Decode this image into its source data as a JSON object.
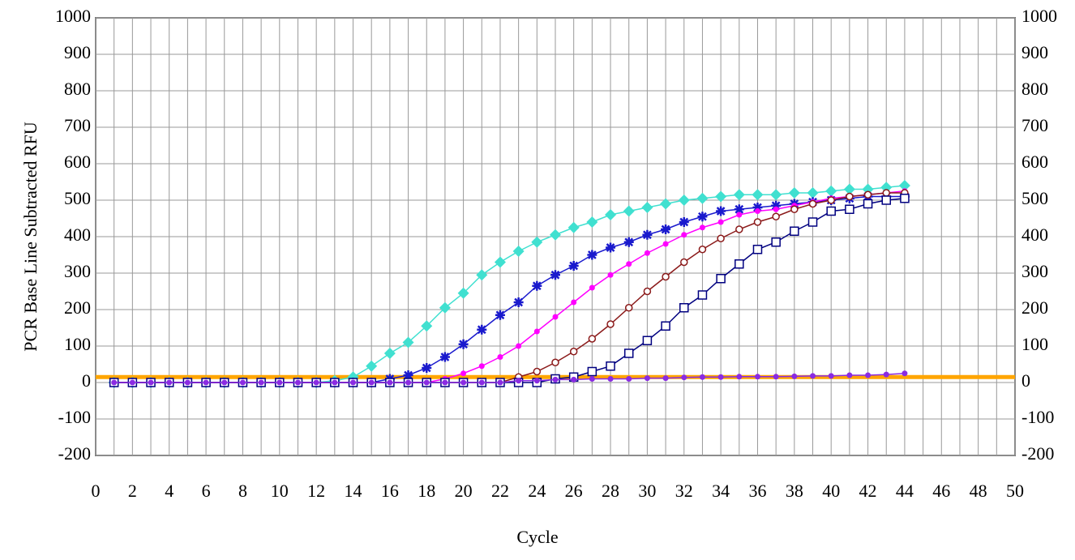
{
  "chart_data": {
    "type": "line",
    "x_label": "Cycle",
    "y_label": "PCR Base Line Subtracted RFU",
    "x": [
      1,
      2,
      3,
      4,
      5,
      6,
      7,
      8,
      9,
      10,
      11,
      12,
      13,
      14,
      15,
      16,
      17,
      18,
      19,
      20,
      21,
      22,
      23,
      24,
      25,
      26,
      27,
      28,
      29,
      30,
      31,
      32,
      33,
      34,
      35,
      36,
      37,
      38,
      39,
      40,
      41,
      42,
      43,
      44
    ],
    "series": [
      {
        "color": "#40e0d0",
        "marker": "diamond",
        "values": [
          0,
          0,
          0,
          0,
          0,
          0,
          0,
          0,
          0,
          0,
          0,
          0,
          5,
          15,
          45,
          80,
          110,
          155,
          205,
          245,
          295,
          330,
          360,
          385,
          405,
          425,
          440,
          460,
          470,
          480,
          490,
          500,
          505,
          510,
          515,
          515,
          515,
          520,
          520,
          525,
          530,
          530,
          535,
          540
        ]
      },
      {
        "color": "#1a1acd",
        "marker": "star",
        "values": [
          0,
          0,
          0,
          0,
          0,
          0,
          0,
          0,
          0,
          0,
          0,
          0,
          0,
          0,
          0,
          10,
          20,
          40,
          70,
          105,
          145,
          185,
          220,
          265,
          295,
          320,
          350,
          370,
          385,
          405,
          420,
          440,
          455,
          470,
          475,
          480,
          485,
          490,
          495,
          500,
          505,
          510,
          510,
          510
        ]
      },
      {
        "color": "#ff00ff",
        "marker": "dot",
        "values": [
          0,
          0,
          0,
          0,
          0,
          0,
          0,
          0,
          0,
          0,
          0,
          0,
          0,
          0,
          0,
          0,
          0,
          0,
          10,
          25,
          45,
          70,
          100,
          140,
          180,
          220,
          260,
          295,
          325,
          355,
          380,
          405,
          425,
          440,
          460,
          470,
          475,
          485,
          495,
          505,
          510,
          515,
          520,
          525
        ]
      },
      {
        "color": "#8b1a1a",
        "marker": "circle",
        "values": [
          0,
          0,
          0,
          0,
          0,
          0,
          0,
          0,
          0,
          0,
          0,
          0,
          0,
          0,
          0,
          0,
          0,
          0,
          0,
          0,
          0,
          0,
          15,
          30,
          55,
          85,
          120,
          160,
          205,
          250,
          290,
          330,
          365,
          395,
          420,
          440,
          455,
          475,
          490,
          500,
          510,
          515,
          520,
          520
        ]
      },
      {
        "color": "#000080",
        "marker": "square",
        "values": [
          0,
          0,
          0,
          0,
          0,
          0,
          0,
          0,
          0,
          0,
          0,
          0,
          0,
          0,
          0,
          0,
          0,
          0,
          0,
          0,
          0,
          0,
          0,
          0,
          10,
          15,
          30,
          45,
          80,
          115,
          155,
          205,
          240,
          285,
          325,
          365,
          385,
          415,
          440,
          470,
          475,
          490,
          500,
          505
        ]
      },
      {
        "color": "#8a2be2",
        "marker": "dot",
        "values": [
          0,
          0,
          0,
          0,
          0,
          0,
          0,
          0,
          0,
          0,
          0,
          0,
          0,
          0,
          0,
          0,
          0,
          0,
          0,
          0,
          0,
          0,
          5,
          5,
          8,
          8,
          10,
          10,
          10,
          12,
          12,
          14,
          15,
          15,
          16,
          16,
          16,
          17,
          18,
          18,
          20,
          20,
          22,
          25
        ]
      }
    ],
    "threshold": 15,
    "threshold_color": "#ffa500",
    "xlim": [
      0,
      50
    ],
    "xticks": [
      0,
      2,
      4,
      6,
      8,
      10,
      12,
      14,
      16,
      18,
      20,
      22,
      24,
      26,
      28,
      30,
      32,
      34,
      36,
      38,
      40,
      42,
      44,
      46,
      48,
      50
    ],
    "ylim": [
      -200,
      1000
    ],
    "yticks": [
      -200,
      -100,
      0,
      100,
      200,
      300,
      400,
      500,
      600,
      700,
      800,
      900,
      1000
    ],
    "grid": true
  }
}
